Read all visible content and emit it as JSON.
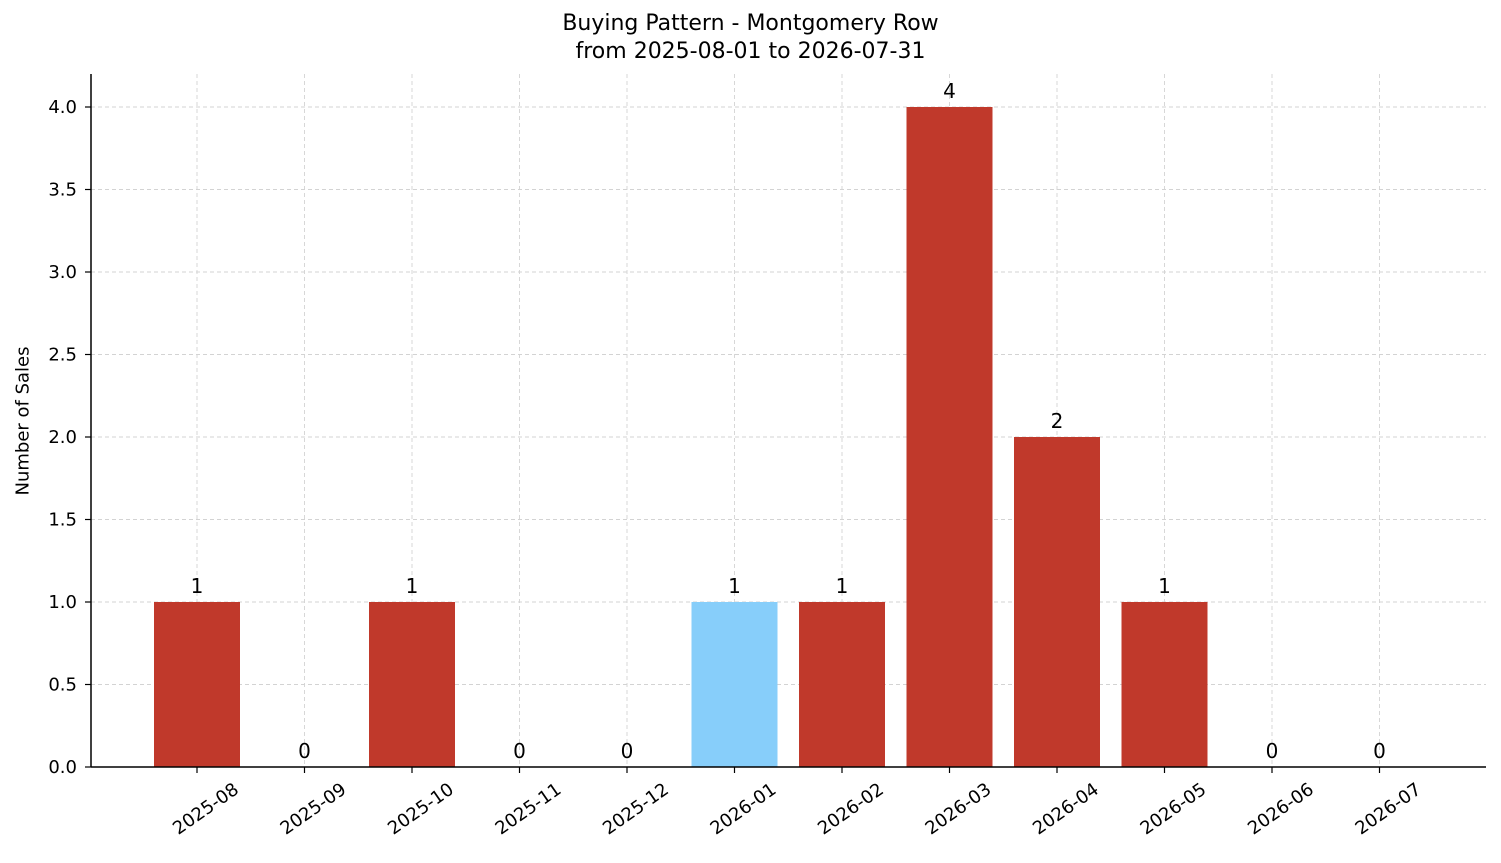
{
  "chart_data": {
    "type": "bar",
    "title_line1": "Buying Pattern - Montgomery Row",
    "title_line2": "from 2025-08-01 to 2026-07-31",
    "xlabel": "",
    "ylabel": "Number of Sales",
    "categories": [
      "2025-08",
      "2025-09",
      "2025-10",
      "2025-11",
      "2025-12",
      "2026-01",
      "2026-02",
      "2026-03",
      "2026-04",
      "2026-05",
      "2026-06",
      "2026-07"
    ],
    "values": [
      1,
      0,
      1,
      0,
      0,
      1,
      1,
      4,
      2,
      1,
      0,
      0
    ],
    "data_labels": [
      "1",
      "0",
      "1",
      "0",
      "0",
      "1",
      "1",
      "4",
      "2",
      "1",
      "0",
      "0"
    ],
    "bar_colors": [
      "#c0392b",
      "#c0392b",
      "#c0392b",
      "#c0392b",
      "#c0392b",
      "#87cefa",
      "#c0392b",
      "#c0392b",
      "#c0392b",
      "#c0392b",
      "#c0392b",
      "#c0392b"
    ],
    "ylim": [
      0,
      4.2
    ],
    "yticks": [
      0.0,
      0.5,
      1.0,
      1.5,
      2.0,
      2.5,
      3.0,
      3.5,
      4.0
    ],
    "ytick_labels": [
      "0.0",
      "0.5",
      "1.0",
      "1.5",
      "2.0",
      "2.5",
      "3.0",
      "3.5",
      "4.0"
    ],
    "grid": true,
    "grid_color": "#d3d3d3"
  }
}
